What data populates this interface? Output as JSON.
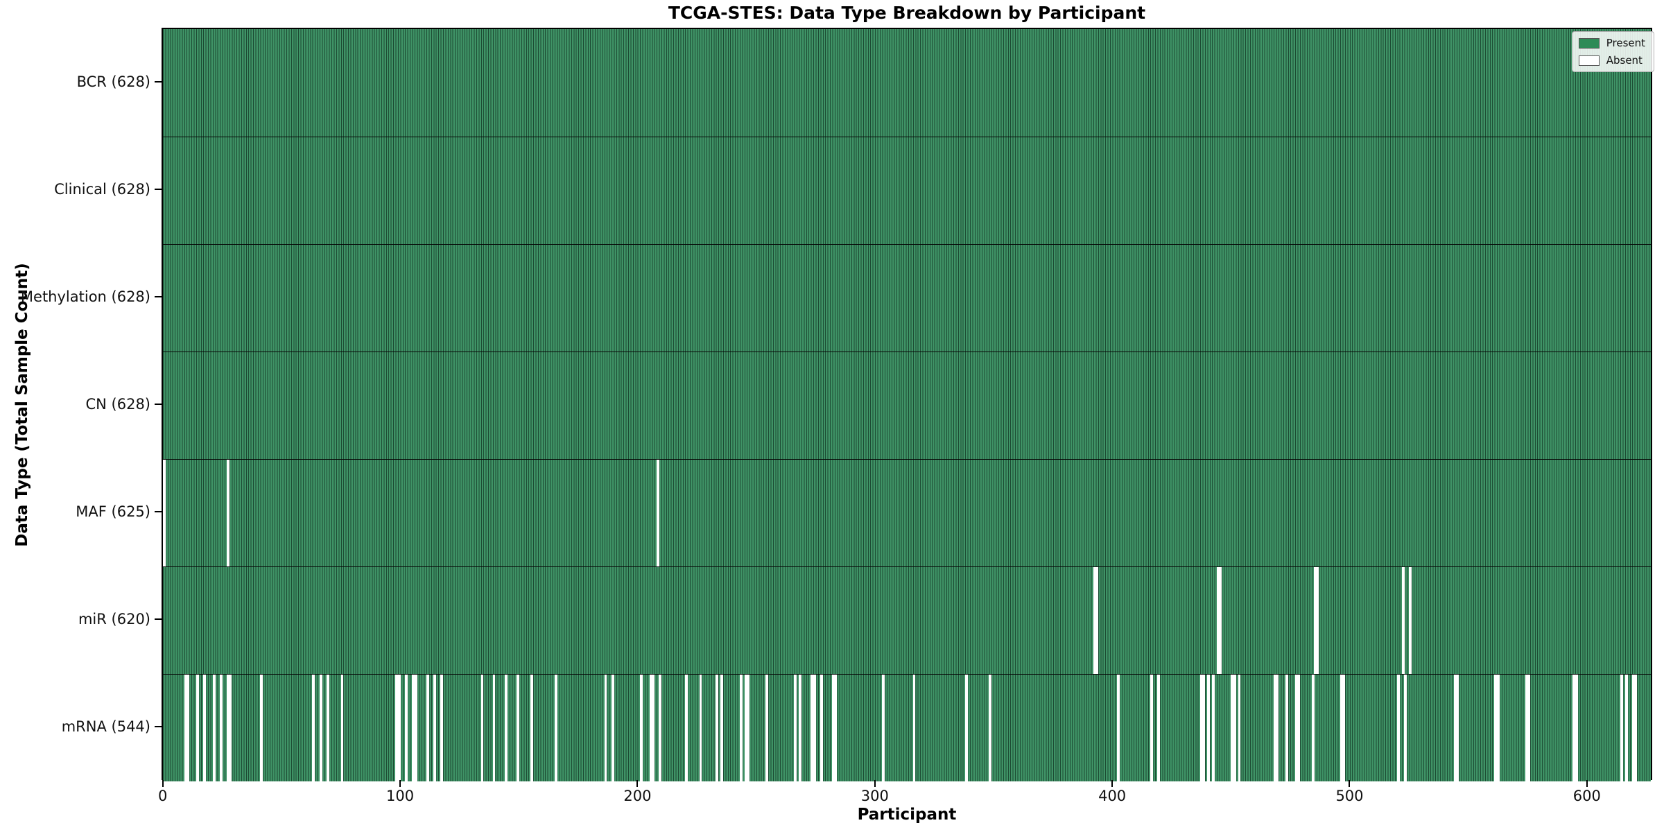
{
  "chart_data": {
    "type": "heatmap",
    "title": "TCGA-STES: Data Type Breakdown by Participant",
    "xlabel": "Participant",
    "ylabel": "Data Type (Total Sample Count)",
    "n_participants": 628,
    "x_ticks": [
      0,
      100,
      200,
      300,
      400,
      500,
      600
    ],
    "grid": false,
    "legend_position": "upper right",
    "legend": [
      {
        "label": "Present",
        "color": "#2e8b57"
      },
      {
        "label": "Absent",
        "color": "#ffffff"
      }
    ],
    "colors": {
      "present_fill": "#3f9366",
      "bar_edge": "#1c4a33",
      "absent": "#ffffff",
      "row_divider": "#050505"
    },
    "rows": [
      {
        "label": "BCR",
        "total": 628,
        "tick_label": "BCR (628)",
        "absent": []
      },
      {
        "label": "Clinical",
        "total": 628,
        "tick_label": "Clinical (628)",
        "absent": []
      },
      {
        "label": "Methylation",
        "total": 628,
        "tick_label": "Methylation (628)",
        "absent": []
      },
      {
        "label": "CN",
        "total": 628,
        "tick_label": "CN (628)",
        "absent": []
      },
      {
        "label": "MAF",
        "total": 625,
        "tick_label": "MAF (625)",
        "absent": [
          0,
          27,
          208
        ]
      },
      {
        "label": "miR",
        "total": 620,
        "tick_label": "miR (620)",
        "absent": [
          392,
          393,
          444,
          445,
          485,
          486,
          522,
          525
        ]
      },
      {
        "label": "mRNA",
        "total": 544,
        "tick_label": "mRNA (544)",
        "absent": [
          9,
          10,
          14,
          17,
          21,
          24,
          27,
          28,
          41,
          63,
          66,
          69,
          75,
          98,
          99,
          102,
          105,
          106,
          111,
          114,
          117,
          134,
          139,
          144,
          149,
          155,
          165,
          186,
          189,
          201,
          205,
          206,
          209,
          220,
          226,
          233,
          235,
          243,
          245,
          246,
          254,
          266,
          268,
          273,
          274,
          277,
          282,
          283,
          303,
          316,
          338,
          348,
          402,
          416,
          419,
          437,
          438,
          440,
          442,
          450,
          451,
          453,
          468,
          469,
          473,
          477,
          478,
          484,
          496,
          497,
          520,
          523,
          544,
          545,
          561,
          562,
          574,
          575,
          594,
          595,
          614,
          616,
          619,
          620
        ]
      }
    ]
  }
}
